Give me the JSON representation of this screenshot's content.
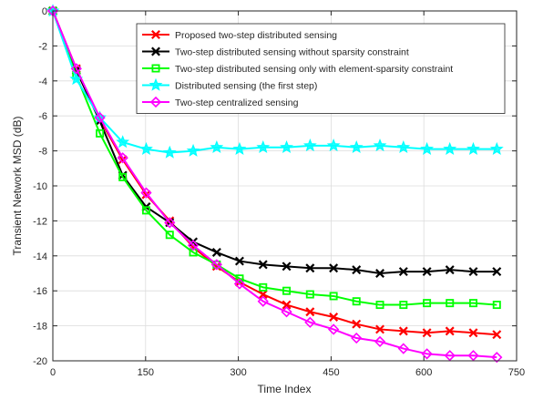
{
  "chart_data": {
    "type": "line",
    "title": "",
    "xlabel": "Time Index",
    "ylabel": "Transient Network MSD (dB)",
    "xlim": [
      0,
      750
    ],
    "ylim": [
      -20,
      0
    ],
    "xticks": [
      0,
      150,
      300,
      450,
      600,
      750
    ],
    "yticks": [
      0,
      -2,
      -4,
      -6,
      -8,
      -10,
      -12,
      -14,
      -16,
      -18,
      -20
    ],
    "grid": true,
    "legend_position": "top-right",
    "x": [
      0,
      38,
      76,
      113,
      151,
      189,
      227,
      265,
      302,
      340,
      378,
      416,
      454,
      491,
      529,
      567,
      605,
      642,
      680,
      718
    ],
    "series": [
      {
        "name": "Proposed two-step distributed sensing",
        "color": "#ff0000",
        "marker": "x",
        "values": [
          0,
          -3.3,
          -6.2,
          -8.5,
          -10.5,
          -12.0,
          -13.5,
          -14.6,
          -15.5,
          -16.2,
          -16.8,
          -17.2,
          -17.5,
          -17.9,
          -18.2,
          -18.3,
          -18.4,
          -18.3,
          -18.4,
          -18.5
        ]
      },
      {
        "name": "Two-step distributed sensing without sparsity constraint",
        "color": "#000000",
        "marker": "x",
        "values": [
          0,
          -3.4,
          -6.3,
          -9.4,
          -11.2,
          -12.1,
          -13.2,
          -13.8,
          -14.3,
          -14.5,
          -14.6,
          -14.7,
          -14.7,
          -14.8,
          -15.0,
          -14.9,
          -14.9,
          -14.8,
          -14.9,
          -14.9
        ]
      },
      {
        "name": "Two-step distributed sensing only with element-sparsity constraint",
        "color": "#00ff00",
        "marker": "square",
        "values": [
          0,
          -3.7,
          -7.0,
          -9.5,
          -11.4,
          -12.8,
          -13.8,
          -14.5,
          -15.3,
          -15.8,
          -16.0,
          -16.2,
          -16.3,
          -16.6,
          -16.8,
          -16.8,
          -16.7,
          -16.7,
          -16.7,
          -16.8
        ]
      },
      {
        "name": "Distributed sensing (the first step)",
        "color": "#00ffff",
        "marker": "star",
        "values": [
          0,
          -3.9,
          -6.1,
          -7.5,
          -7.9,
          -8.1,
          -8.0,
          -7.8,
          -7.9,
          -7.8,
          -7.8,
          -7.7,
          -7.7,
          -7.8,
          -7.7,
          -7.8,
          -7.9,
          -7.9,
          -7.9,
          -7.9
        ]
      },
      {
        "name": "Two-step centralized sensing",
        "color": "#ff00ff",
        "marker": "diamond",
        "values": [
          0,
          -3.3,
          -6.1,
          -8.4,
          -10.4,
          -12.1,
          -13.4,
          -14.5,
          -15.6,
          -16.6,
          -17.2,
          -17.8,
          -18.2,
          -18.7,
          -18.9,
          -19.3,
          -19.6,
          -19.7,
          -19.7,
          -19.8
        ]
      }
    ]
  }
}
